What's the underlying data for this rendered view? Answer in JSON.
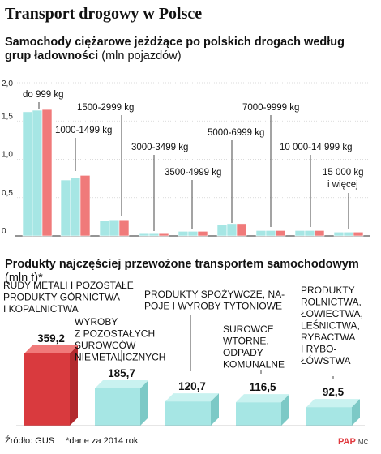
{
  "title": "Transport drogowy w Polsce",
  "chart1": {
    "title_bold": "Samochody ciężarowe jeżdżące po polskich drogach według grup ładowności",
    "title_unit": "(mln pojazdów)"
  },
  "chart2": {
    "title_bold": "Produkty najczęściej przewożone transportem samochodowym",
    "title_unit": "(mln t)*"
  },
  "footer": {
    "source": "Źródło: GUS",
    "note": "*dane za 2014 rok"
  },
  "logo": {
    "mark": "PAP",
    "initials": "MC"
  },
  "colors": {
    "teal": "#a6e6e4",
    "red": "#f07a7a",
    "dark_red": "#d93a3e",
    "grid": "#d0d0d0"
  },
  "chart_data": [
    {
      "type": "bar",
      "ylim": [
        0,
        2.0
      ],
      "yticks": [
        "0",
        "0,5",
        "1,0",
        "1,5",
        "2,0"
      ],
      "categories": [
        "do 999 kg",
        "1000-1499 kg",
        "1500-2999 kg",
        "3000-3499 kg",
        "3500-4999 kg",
        "5000-6999 kg",
        "7000-9999 kg",
        "10 000-14 999 kg",
        "15 000 kg i więcej"
      ],
      "series": [
        {
          "values": [
            1.62,
            0.73,
            0.2,
            0.03,
            0.06,
            0.15,
            0.07,
            0.07,
            0.05
          ]
        },
        {
          "values": [
            1.64,
            0.76,
            0.21,
            0.03,
            0.06,
            0.16,
            0.07,
            0.07,
            0.05
          ]
        },
        {
          "values": [
            1.65,
            0.79,
            0.21,
            0.03,
            0.06,
            0.16,
            0.07,
            0.07,
            0.05
          ]
        }
      ]
    },
    {
      "type": "bar",
      "categories": [
        "RUDY METALI I POZOSTAŁE PRODUKTY GÓRNICTWA I KOPALNICTWA",
        "WYROBY Z POZOSTAŁYCH SUROWCÓW NIEMETALICZNYCH",
        "PRODUKTY SPOŻYWCZE, NAPOJE I WYROBY TYTONIOWE",
        "SUROWCE WTÓRNE, ODPADY KOMUNALNE",
        "PRODUKTY ROLNICTWA, ŁOWIECTWA, LEŚNICTWA, RYBACTWA I RYBOŁÓWSTWA"
      ],
      "values": [
        359.2,
        185.7,
        120.7,
        116.5,
        92.5
      ],
      "value_labels": [
        "359,2",
        "185,7",
        "120,7",
        "116,5",
        "92,5"
      ]
    }
  ]
}
